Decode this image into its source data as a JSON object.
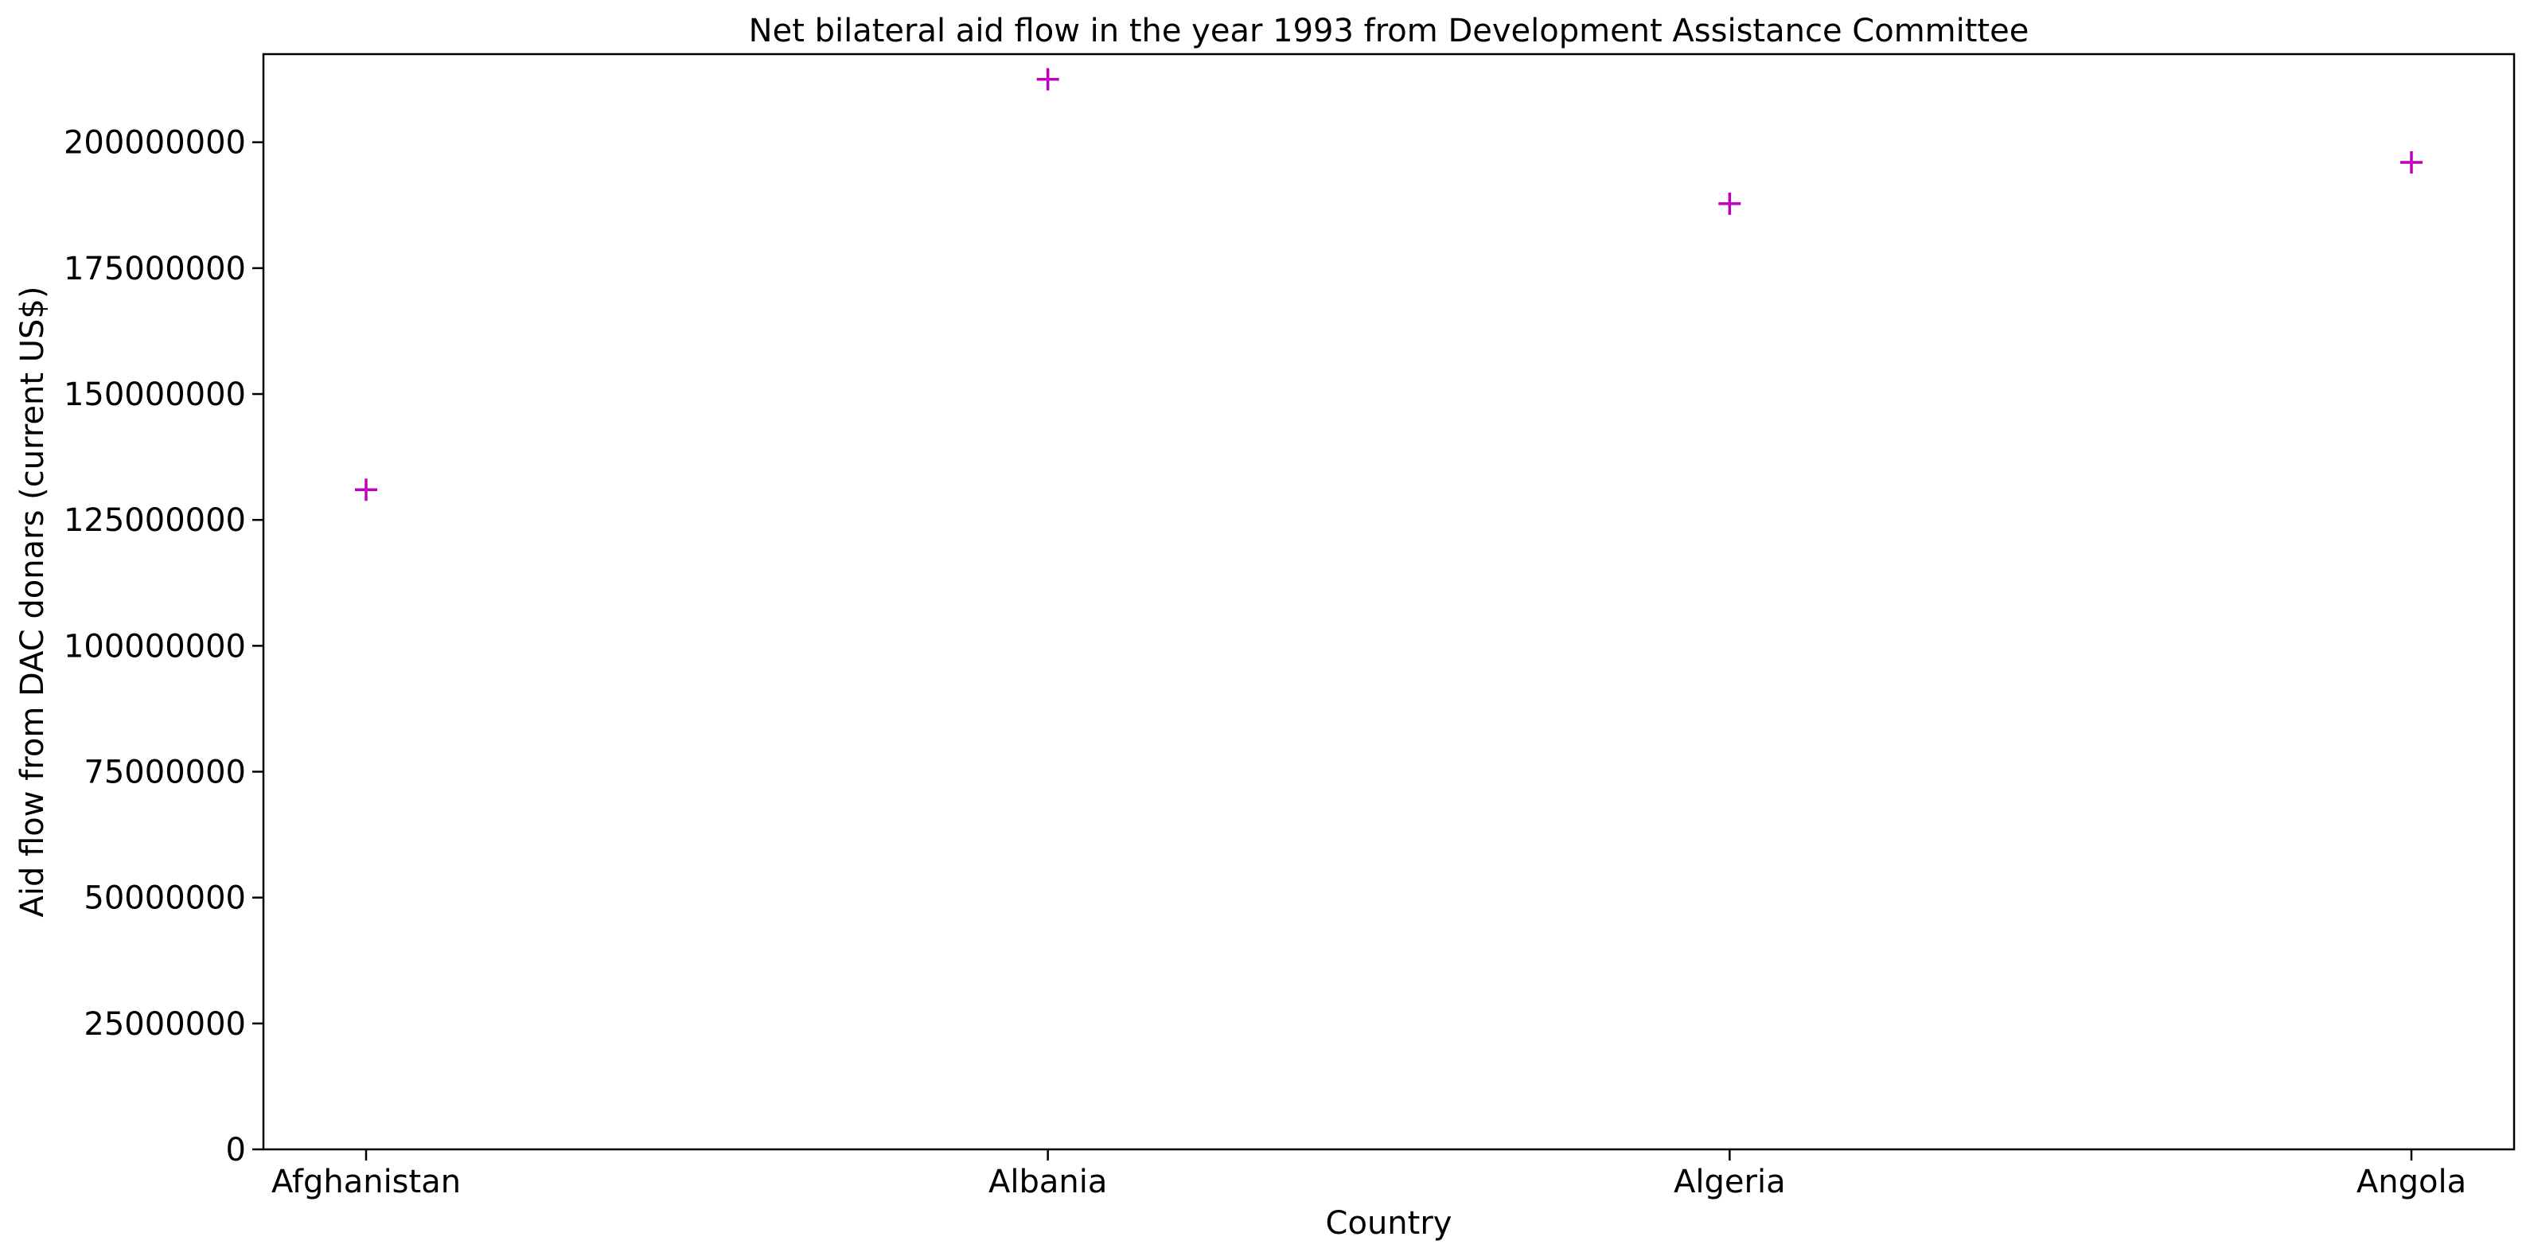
{
  "chart_data": {
    "type": "scatter",
    "title": "Net bilateral aid flow in the year 1993 from Development Assistance Committee",
    "xlabel": "Country",
    "ylabel": "Aid flow from DAC donars (current US$)",
    "categories": [
      "Afghanistan",
      "Albania",
      "Algeria",
      "Angola"
    ],
    "values": [
      131000000,
      212500000,
      187800000,
      196000000
    ],
    "ylim": [
      0,
      217500000
    ],
    "yticks": [
      0,
      25000000,
      50000000,
      75000000,
      100000000,
      125000000,
      150000000,
      175000000,
      200000000
    ],
    "ytick_labels": [
      "0",
      "25000000",
      "50000000",
      "75000000",
      "100000000",
      "125000000",
      "150000000",
      "175000000",
      "200000000"
    ],
    "marker": "plus",
    "marker_color": "#bf00bf",
    "grid": false,
    "legend": "none"
  }
}
